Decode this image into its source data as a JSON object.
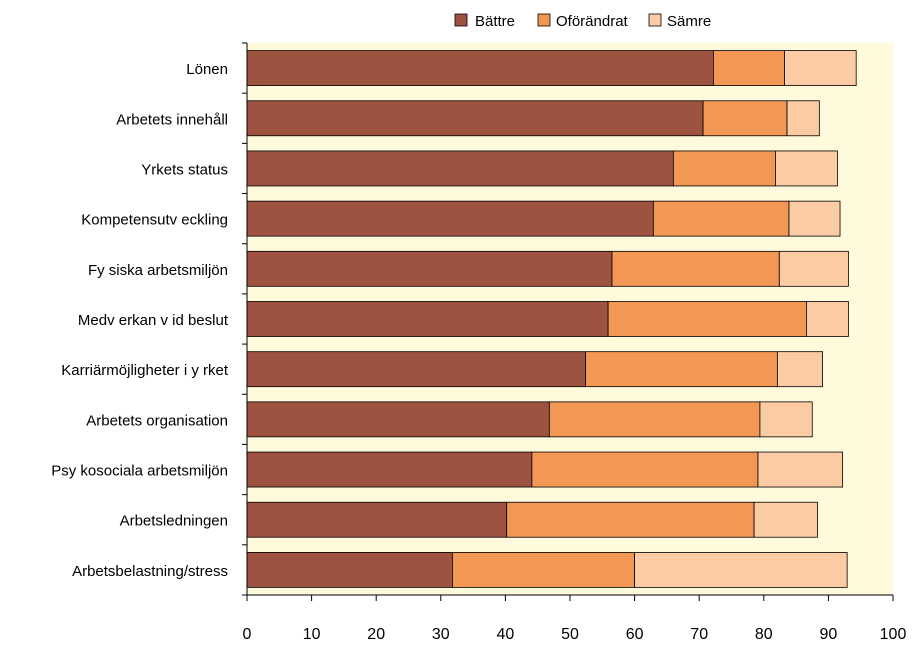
{
  "chart_data": {
    "type": "bar",
    "orientation": "horizontal",
    "stacked": true,
    "title": "",
    "xlabel": "",
    "ylabel": "",
    "xlim": [
      0,
      100
    ],
    "xticks": [
      0,
      10,
      20,
      30,
      40,
      50,
      60,
      70,
      80,
      90,
      100
    ],
    "grid": false,
    "legend_position": "top-center",
    "plot_background": "#FFFADC",
    "categories": [
      "Lönen",
      "Arbetets innehåll",
      "Yrkets status",
      "Kompetensutv eckling",
      "Fy siska arbetsmiljön",
      "Medv erkan v id beslut",
      "Karriärmöjligheter i y rket",
      "Arbetets organisation",
      "Psy kosociala arbetsmiljön",
      "Arbetsledningen",
      "Arbetsbelastning/stress"
    ],
    "series": [
      {
        "name": "Bättre",
        "color": "#9E5340",
        "values": [
          72.2,
          70.6,
          66.0,
          62.9,
          56.5,
          55.9,
          52.4,
          46.8,
          44.1,
          40.2,
          31.8
        ]
      },
      {
        "name": "Oförändrat",
        "color": "#F39854",
        "values": [
          11.0,
          13.0,
          15.8,
          21.0,
          25.9,
          30.7,
          29.7,
          32.6,
          35.0,
          38.3,
          28.2
        ]
      },
      {
        "name": "Sämre",
        "color": "#FBCCA4",
        "values": [
          11.1,
          5.0,
          9.6,
          7.9,
          10.7,
          6.5,
          7.0,
          8.1,
          13.1,
          9.8,
          32.9
        ]
      }
    ]
  }
}
